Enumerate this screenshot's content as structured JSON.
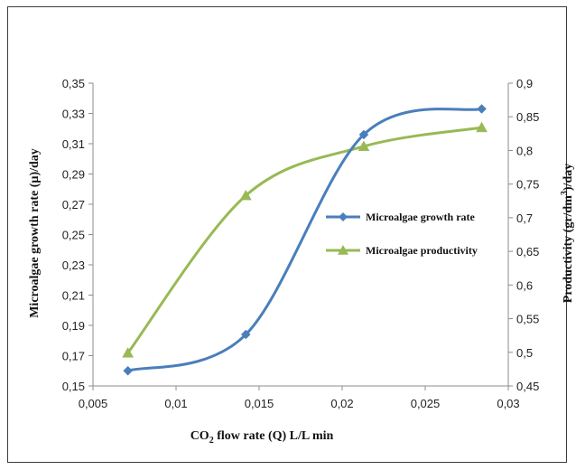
{
  "chart_data": {
    "type": "line",
    "xlabel_main": "CO",
    "xlabel_sub": "2",
    "xlabel_rest": " flow rate (Q) L/L min",
    "ylabel_left": "Microalgae growth rate (µ)/day",
    "ylabel_right_main": "Productivity (gr/dm",
    "ylabel_right_sup": "3",
    "ylabel_right_rest": ")/day",
    "x_ticks": [
      "0,005",
      "0,01",
      "0,015",
      "0,02",
      "0,025",
      "0,03"
    ],
    "x_tick_values": [
      0.005,
      0.01,
      0.015,
      0.02,
      0.025,
      0.03
    ],
    "xlim": [
      0.005,
      0.03
    ],
    "y_left_ticks": [
      "0,15",
      "0,17",
      "0,19",
      "0,21",
      "0,23",
      "0,25",
      "0,27",
      "0,29",
      "0,31",
      "0,33",
      "0,35"
    ],
    "y_left_tick_values": [
      0.15,
      0.17,
      0.19,
      0.21,
      0.23,
      0.25,
      0.27,
      0.29,
      0.31,
      0.33,
      0.35
    ],
    "ylim_left": [
      0.15,
      0.35
    ],
    "y_right_ticks": [
      "0,45",
      "0,5",
      "0,55",
      "0,6",
      "0,65",
      "0,7",
      "0,75",
      "0,8",
      "0,85",
      "0,9"
    ],
    "y_right_tick_values": [
      0.45,
      0.5,
      0.55,
      0.6,
      0.65,
      0.7,
      0.75,
      0.8,
      0.85,
      0.9
    ],
    "ylim_right": [
      0.45,
      0.9
    ],
    "grid": false,
    "legend_position": "center-right",
    "series": [
      {
        "name": "Microalgae growth rate",
        "axis": "left",
        "marker": "diamond",
        "color": "#4a7ebb",
        "x": [
          0.0071,
          0.0142,
          0.0213,
          0.0284
        ],
        "y": [
          0.16,
          0.184,
          0.316,
          0.333
        ]
      },
      {
        "name": "Microalgae productivity",
        "axis": "right",
        "marker": "triangle",
        "color": "#98b954",
        "x": [
          0.0071,
          0.0142,
          0.0213,
          0.0284
        ],
        "y": [
          0.499,
          0.733,
          0.806,
          0.834
        ]
      }
    ]
  }
}
